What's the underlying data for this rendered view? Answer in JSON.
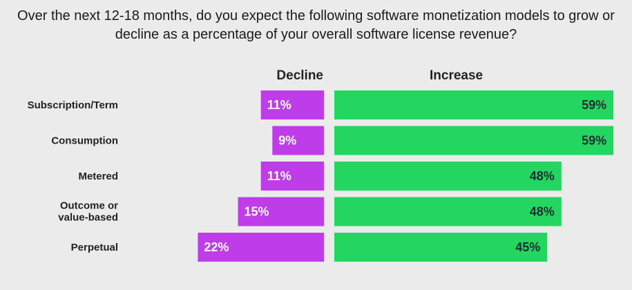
{
  "chart_data": {
    "type": "bar",
    "title": "Over the next 12-18 months, do you expect the following software monetization models to grow or decline as a percentage of your overall software license revenue?",
    "categories": [
      "Subscription/Term",
      "Consumption",
      "Metered",
      "Outcome or value-based",
      "Perpetual"
    ],
    "category_lines": [
      [
        "Subscription/Term"
      ],
      [
        "Consumption"
      ],
      [
        "Metered"
      ],
      [
        "Outcome or",
        "value-based"
      ],
      [
        "Perpetual"
      ]
    ],
    "series": [
      {
        "name": "Decline",
        "values": [
          11,
          9,
          11,
          15,
          22
        ],
        "labels": [
          "11%",
          "9%",
          "11%",
          "15%",
          "22%"
        ],
        "color": "#bf3de8",
        "label_color": "#ffffff"
      },
      {
        "name": "Increase",
        "values": [
          59,
          59,
          48,
          48,
          45
        ],
        "labels": [
          "59%",
          "59%",
          "48%",
          "48%",
          "45%"
        ],
        "color": "#22d660",
        "label_color": "#1f2b33"
      }
    ],
    "unit": "%",
    "background": "#ebebeb",
    "legend": "none"
  }
}
